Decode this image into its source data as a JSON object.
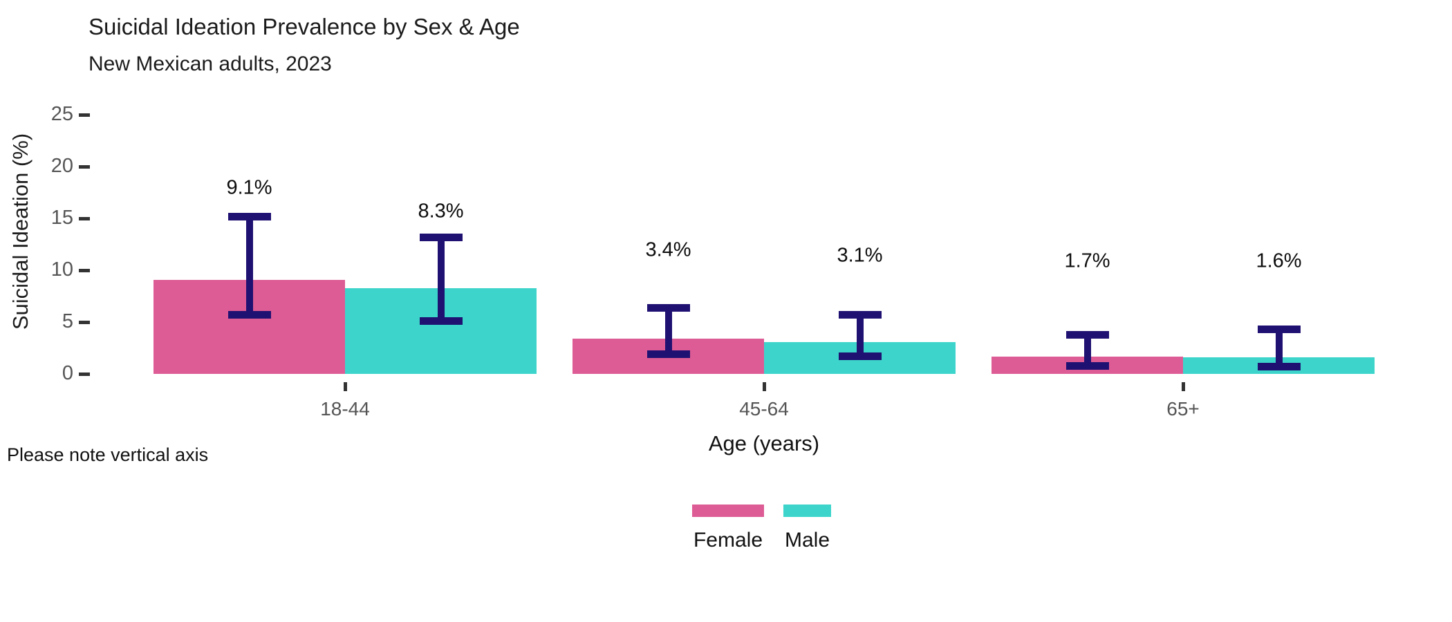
{
  "title": "Suicidal Ideation Prevalence by Sex & Age",
  "subtitle": "New Mexican adults, 2023",
  "note": "Please note vertical axis",
  "chart_data": {
    "type": "bar",
    "title": "Suicidal Ideation Prevalence by Sex & Age",
    "subtitle": "New Mexican adults, 2023",
    "xlabel": "Age (years)",
    "ylabel": "Suicidal Ideation (%)",
    "ylim": [
      0,
      25
    ],
    "yticks": [
      0,
      5,
      10,
      15,
      20,
      25
    ],
    "categories": [
      "18-44",
      "45-64",
      "65+"
    ],
    "series": [
      {
        "name": "Female",
        "color": "#DD5C95",
        "values": [
          9.1,
          3.4,
          1.7
        ],
        "labels": [
          "9.1%",
          "3.4%",
          "1.7%"
        ],
        "ci_low": [
          5.7,
          1.9,
          0.8
        ],
        "ci_high": [
          15.2,
          6.4,
          3.8
        ]
      },
      {
        "name": "Male",
        "color": "#3DD5CB",
        "values": [
          8.3,
          3.1,
          1.6
        ],
        "labels": [
          "8.3%",
          "3.1%",
          "1.6%"
        ],
        "ci_low": [
          5.1,
          1.7,
          0.7
        ],
        "ci_high": [
          13.2,
          5.7,
          4.3
        ]
      }
    ],
    "error_bar_color": "#1F1172",
    "grid": false,
    "legend_position": "bottom"
  },
  "legend": {
    "items": [
      {
        "label": "Female",
        "color": "#DD5C95"
      },
      {
        "label": "Male",
        "color": "#3DD5CB"
      }
    ]
  }
}
